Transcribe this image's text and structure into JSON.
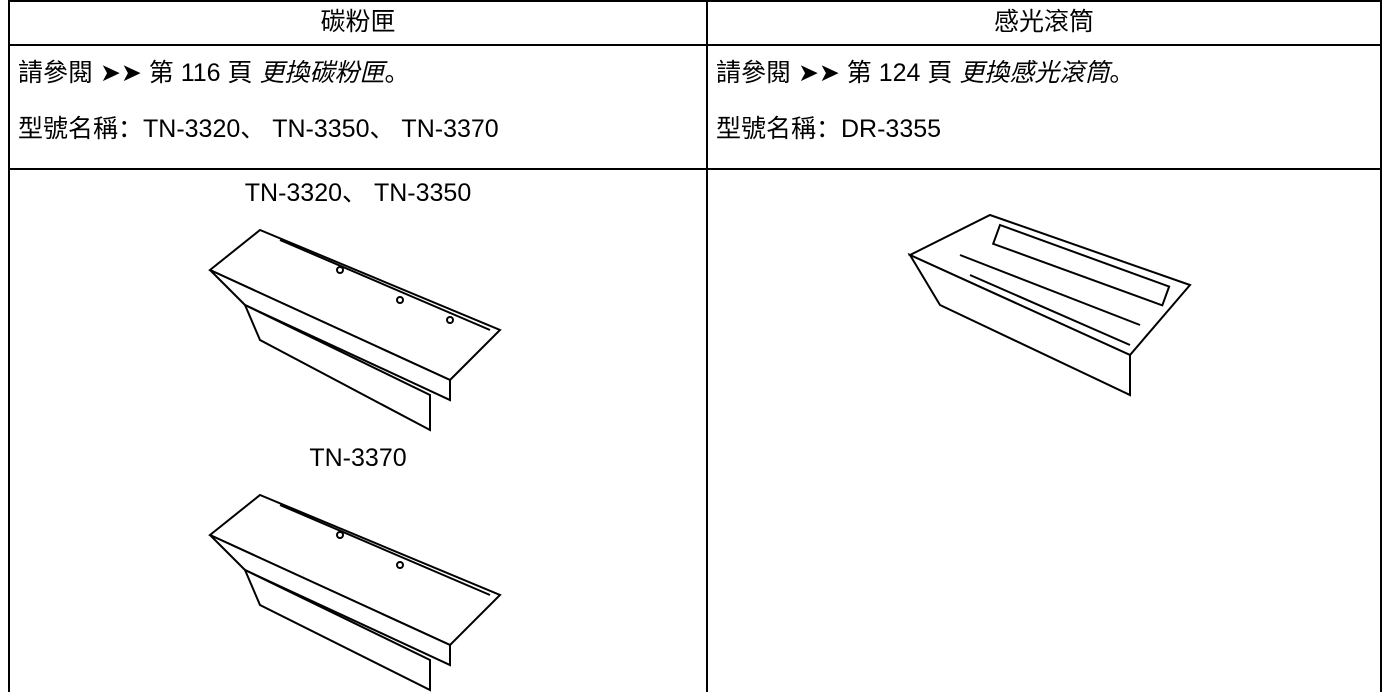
{
  "columns": [
    {
      "header": "碳粉匣",
      "ref": "請參閱 ➤➤ 第 116 頁",
      "link": "更換碳粉匣",
      "end": "。",
      "model": "型號名稱：TN-3320、 TN-3350、 TN-3370",
      "image_labels": [
        "TN-3320、 TN-3350",
        "TN-3370"
      ]
    },
    {
      "header": "感光滾筒",
      "ref": "請參閱 ➤➤ 第 124 頁",
      "link": "更換感光滾筒",
      "end": "。",
      "model": "型號名稱：DR-3355"
    }
  ]
}
